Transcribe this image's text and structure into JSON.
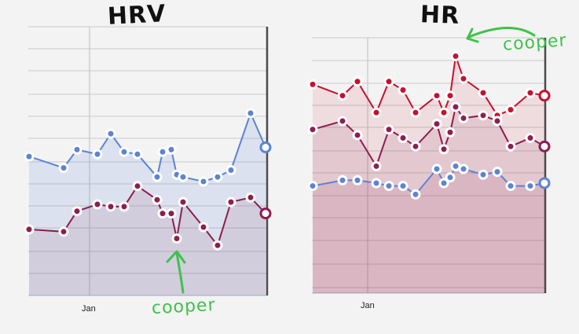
{
  "titles": {
    "hrv": "HRV",
    "hr": "HR"
  },
  "x_labels": {
    "hrv": "Jan",
    "hr": "Jan"
  },
  "notes": {
    "hrv": "cooper",
    "hr": "cooper"
  },
  "colors": {
    "blue": "#5b84d1",
    "crimson": "#8e1e4f",
    "red": "#c8102e",
    "green": "#3ec24a"
  },
  "chart_data": [
    {
      "type": "line",
      "title": "HRV",
      "xlabel": "",
      "ylabel": "",
      "x_ticks": [
        "Jan"
      ],
      "grid": true,
      "series": [
        {
          "values": [
            61,
            56,
            64,
            62,
            71,
            63,
            62,
            52,
            63,
            64,
            53,
            52,
            50,
            52,
            55,
            80,
            65
          ]
        },
        {
          "values": [
            29,
            28,
            37,
            40,
            39,
            39,
            48,
            42,
            36,
            36,
            25,
            41,
            30,
            22,
            41,
            43,
            36
          ]
        }
      ]
    },
    {
      "type": "line",
      "title": "HR",
      "xlabel": "",
      "ylabel": "",
      "x_ticks": [
        "Jan"
      ],
      "grid": true,
      "series": [
        {
          "values": [
            74,
            70,
            75,
            64,
            75,
            72,
            64,
            70,
            64,
            70,
            84,
            76,
            71,
            63,
            65,
            71,
            70
          ]
        },
        {
          "values": [
            58,
            61,
            56,
            45,
            58,
            55,
            52,
            60,
            51,
            57,
            66,
            62,
            63,
            61,
            52,
            55,
            52
          ]
        },
        {
          "values": [
            38,
            40,
            40,
            39,
            38,
            38,
            35,
            44,
            39,
            41,
            45,
            44,
            42,
            43,
            38,
            38,
            39
          ]
        }
      ]
    }
  ]
}
